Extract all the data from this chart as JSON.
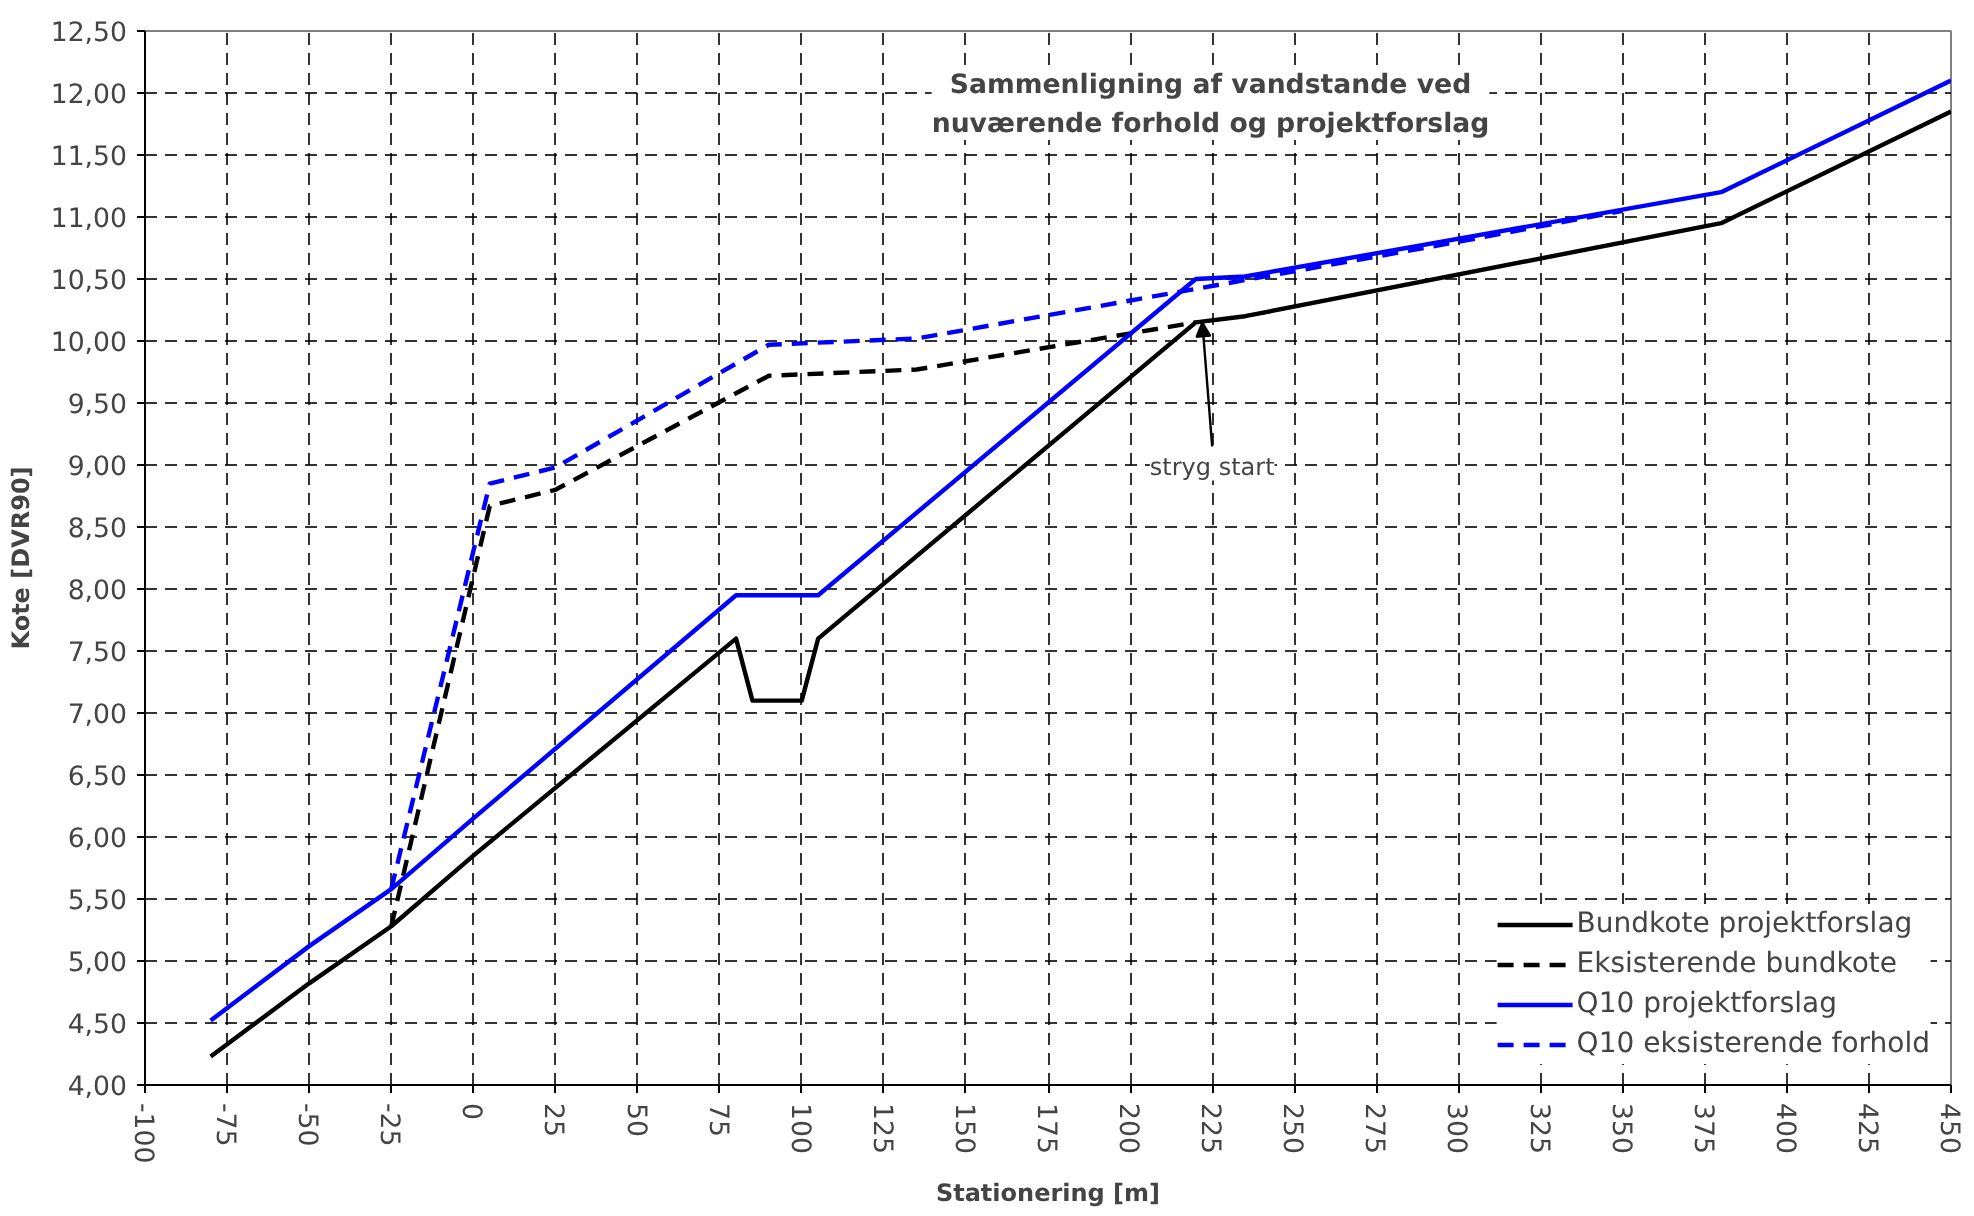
{
  "chart_data": {
    "type": "line",
    "title": "Sammenligning af vandstande ved\nnuværende forhold og projektforslag",
    "xlabel": "Stationering [m]",
    "ylabel": "Kote [DVR90]",
    "xlim": [
      -100,
      450
    ],
    "xticks": [
      -100,
      -75,
      -50,
      -25,
      0,
      25,
      50,
      75,
      100,
      125,
      150,
      175,
      200,
      225,
      250,
      275,
      300,
      325,
      350,
      375,
      400,
      425,
      450
    ],
    "ylim": [
      4,
      12.5
    ],
    "yticks": [
      {
        "value": 4,
        "label": "4,00"
      },
      {
        "value": 4.5,
        "label": "4,50"
      },
      {
        "value": 5,
        "label": "5,00"
      },
      {
        "value": 5.5,
        "label": "5,50"
      },
      {
        "value": 6,
        "label": "6,00"
      },
      {
        "value": 6.5,
        "label": "6,50"
      },
      {
        "value": 7,
        "label": "7,00"
      },
      {
        "value": 7.5,
        "label": "7,50"
      },
      {
        "value": 8,
        "label": "8,00"
      },
      {
        "value": 8.5,
        "label": "8,50"
      },
      {
        "value": 9,
        "label": "9,00"
      },
      {
        "value": 9.5,
        "label": "9,50"
      },
      {
        "value": 10,
        "label": "10,00"
      },
      {
        "value": 10.5,
        "label": "10,50"
      },
      {
        "value": 11,
        "label": "11,00"
      },
      {
        "value": 11.5,
        "label": "11,50"
      },
      {
        "value": 12,
        "label": "12,00"
      },
      {
        "value": 12.5,
        "label": "12,50"
      }
    ],
    "grid": true,
    "legend": "bottom right",
    "marker": "none",
    "annotations": [
      {
        "text": "stryg start",
        "x": 222,
        "y": 10.15
      }
    ],
    "series": [
      {
        "name": "Bundkote projektforslag",
        "color": "#000000",
        "line_style": "solid",
        "x": [
          -80,
          -50,
          -25,
          0,
          80,
          85,
          100,
          105,
          220,
          235,
          380,
          450
        ],
        "values": [
          4.23,
          4.82,
          5.28,
          5.85,
          7.6,
          7.1,
          7.1,
          7.6,
          10.15,
          10.2,
          10.95,
          11.85
        ]
      },
      {
        "name": "Eksisterende bundkote",
        "color": "#000000",
        "line_style": "dashed",
        "x": [
          -25,
          5,
          25,
          90,
          135,
          220
        ],
        "values": [
          5.28,
          8.67,
          8.8,
          9.72,
          9.77,
          10.15
        ]
      },
      {
        "name": "Q10 projektforslag",
        "color": "#0000ff",
        "line_style": "solid",
        "x": [
          -80,
          -50,
          -25,
          0,
          80,
          105,
          220,
          235,
          380,
          450
        ],
        "values": [
          4.52,
          5.12,
          5.58,
          6.15,
          7.95,
          7.95,
          10.5,
          10.52,
          11.2,
          12.1
        ]
      },
      {
        "name": "Q10 eksisterende forhold",
        "color": "#0000ff",
        "line_style": "dashed",
        "x": [
          -25,
          5,
          25,
          90,
          135,
          220,
          300,
          330,
          350
        ],
        "values": [
          5.58,
          8.85,
          8.98,
          9.97,
          10.02,
          10.42,
          10.8,
          10.95,
          11.05
        ]
      }
    ]
  }
}
